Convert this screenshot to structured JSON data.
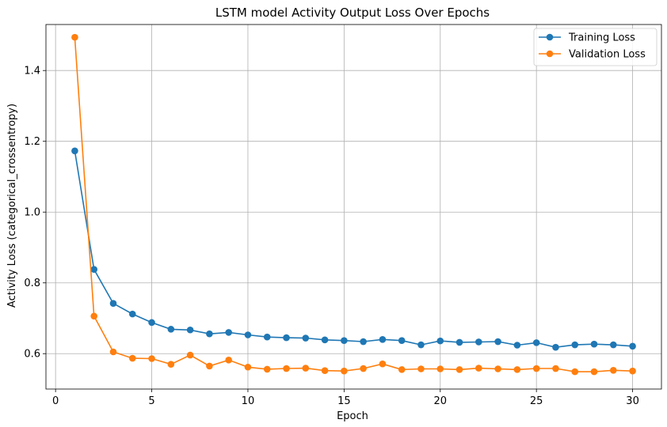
{
  "chart_data": {
    "type": "line",
    "title": "LSTM model Activity Output Loss Over Epochs",
    "xlabel": "Epoch",
    "ylabel": "Activity Loss (categorical_crossentropy)",
    "xlim": [
      -0.5,
      31.5
    ],
    "ylim": [
      0.5,
      1.53
    ],
    "xticks": [
      0,
      5,
      10,
      15,
      20,
      25,
      30
    ],
    "yticks": [
      0.6,
      0.8,
      1.0,
      1.2,
      1.4
    ],
    "xtick_labels": [
      "0",
      "5",
      "10",
      "15",
      "20",
      "25",
      "30"
    ],
    "ytick_labels": [
      "0.6",
      "0.8",
      "1.0",
      "1.2",
      "1.4"
    ],
    "grid": true,
    "legend_position": "top-right",
    "x": [
      1,
      2,
      3,
      4,
      5,
      6,
      7,
      8,
      9,
      10,
      11,
      12,
      13,
      14,
      15,
      16,
      17,
      18,
      19,
      20,
      21,
      22,
      23,
      24,
      25,
      26,
      27,
      28,
      29,
      30
    ],
    "series": [
      {
        "name": "Training Loss",
        "color": "#1f77b4",
        "values": [
          1.173,
          0.838,
          0.742,
          0.712,
          0.688,
          0.669,
          0.667,
          0.656,
          0.66,
          0.653,
          0.647,
          0.645,
          0.644,
          0.639,
          0.637,
          0.634,
          0.64,
          0.637,
          0.625,
          0.636,
          0.632,
          0.633,
          0.634,
          0.624,
          0.631,
          0.618,
          0.625,
          0.627,
          0.625,
          0.621
        ]
      },
      {
        "name": "Validation Loss",
        "color": "#ff7f0e",
        "values": [
          1.494,
          0.706,
          0.605,
          0.587,
          0.586,
          0.57,
          0.596,
          0.565,
          0.582,
          0.562,
          0.556,
          0.558,
          0.559,
          0.552,
          0.551,
          0.558,
          0.571,
          0.555,
          0.557,
          0.557,
          0.555,
          0.559,
          0.557,
          0.555,
          0.558,
          0.558,
          0.549,
          0.549,
          0.553,
          0.551
        ]
      }
    ]
  }
}
